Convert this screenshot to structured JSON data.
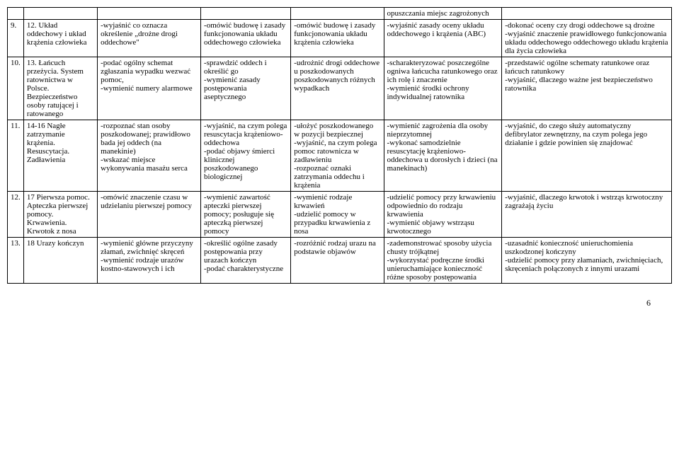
{
  "page_number": "6",
  "table": {
    "rows": [
      {
        "c1": "",
        "c2": "",
        "c3": "",
        "c4": "",
        "c5": "",
        "c6": "opuszczania miejsc zagrożonych",
        "c7": ""
      },
      {
        "c1": "9.",
        "c2": "12. Układ oddechowy i układ krążenia człowieka",
        "c3": "-wyjaśnić co oznacza określenie „drożne drogi oddechowe\"",
        "c4": "-omówić budowę i zasady funkcjonowania układu oddechowego człowieka",
        "c5": "-omówić budowę i zasady funkcjonowania układu krążenia człowieka",
        "c6": "-wyjaśnić zasady oceny układu oddechowego i krążenia (ABC)",
        "c7": "-dokonać oceny czy drogi oddechowe są drożne\n-wyjaśnić znaczenie prawidłowego funkcjonowania układu oddechowego oddechowego układu krążenia dla życia człowieka"
      },
      {
        "c1": "10.",
        "c2": "13. Łańcuch przeżycia. System ratownictwa w Polsce. Bezpieczeństwo osoby ratującej i ratowanego",
        "c3": "-podać ogólny schemat zgłaszania wypadku wezwać pomoc,\n-wymienić numery alarmowe",
        "c4": "-sprawdzić oddech i określić go\n-wymienić zasady postępowania aseptycznego",
        "c5": "-udrożnić drogi oddechowe u poszkodowanych poszkodowanych różnych wypadkach",
        "c6": "-scharakteryzować poszczególne ogniwa łańcucha ratunkowego oraz ich rolę i znaczenie\n-wymienić środki ochrony indywidualnej ratownika",
        "c7": "-przedstawić ogólne schematy ratunkowe oraz łańcuch ratunkowy\n-wyjaśnić, dlaczego ważne jest bezpieczeństwo ratownika"
      },
      {
        "c1": "11.",
        "c2": "14-16 Nagłe zatrzymanie krążenia. Resuscytacja. Zadławienia",
        "c3": "-rozpoznać stan osoby poszkodowanej; prawidłowo bada jej oddech (na manekinie)\n-wskazać miejsce wykonywania masażu serca",
        "c4": "-wyjaśnić, na czym polega resuscytacja krążeniowo-oddechowa\n-podać objawy śmierci klinicznej poszkodowanego biologicznej",
        "c5": "-ułożyć poszkodowanego w pozycji bezpiecznej\n-wyjaśnić, na czym polega pomoc ratownicza w zadławieniu\n-rozpoznać oznaki zatrzymania oddechu i krążenia",
        "c6": "-wymienić zagrożenia dla osoby nieprzytomnej\n-wykonać samodzielnie resuscytację krążeniowo-oddechowa u dorosłych i dzieci (na manekinach)",
        "c7": "-wyjaśnić, do czego służy automatyczny defibrylator zewnętrzny, na czym polega jego działanie i gdzie powinien się znajdować"
      },
      {
        "c1": "12.",
        "c2": "17 Pierwsza pomoc. Apteczka pierwszej pomocy. Krwawienia. Krwotok z nosa",
        "c3": "-omówić znaczenie czasu w udzielaniu pierwszej pomocy",
        "c4": "-wymienić zawartość apteczki pierwszej pomocy; posługuje się apteczką pierwszej pomocy",
        "c5": "-wymienić rodzaje krwawień\n-udzielić pomocy w przypadku krwawienia z nosa",
        "c6": "-udzielić pomocy przy krwawieniu odpowiednio do rodzaju krwawienia\n-wymienić objawy wstrząsu krwotocznego",
        "c7": "-wyjaśnić, dlaczego krwotok i wstrząs krwotoczny zagrażają życiu"
      },
      {
        "c1": "13.",
        "c2": "18 Urazy kończyn",
        "c3": "-wymienić główne przyczyny złamań, zwichnięć skręceń\n-wymienić rodzaje urazów kostno-stawowych i ich",
        "c4": "-określić ogólne zasady postępowania przy urazach kończyn\n-podać charakterystyczne",
        "c5": "-rozróżnić rodzaj urazu na podstawie objawów",
        "c6": "-zademonstrować sposoby użycia chusty trójkątnej\n-wykorzystać podręczne środki unieruchamiające konieczność różne sposoby postępowania",
        "c7": "-uzasadnić konieczność unieruchomienia uszkodzonej kończyny\n-udzielić pomocy przy złamaniach, zwichnięciach, skręceniach połączonych z innymi urazami"
      }
    ]
  }
}
